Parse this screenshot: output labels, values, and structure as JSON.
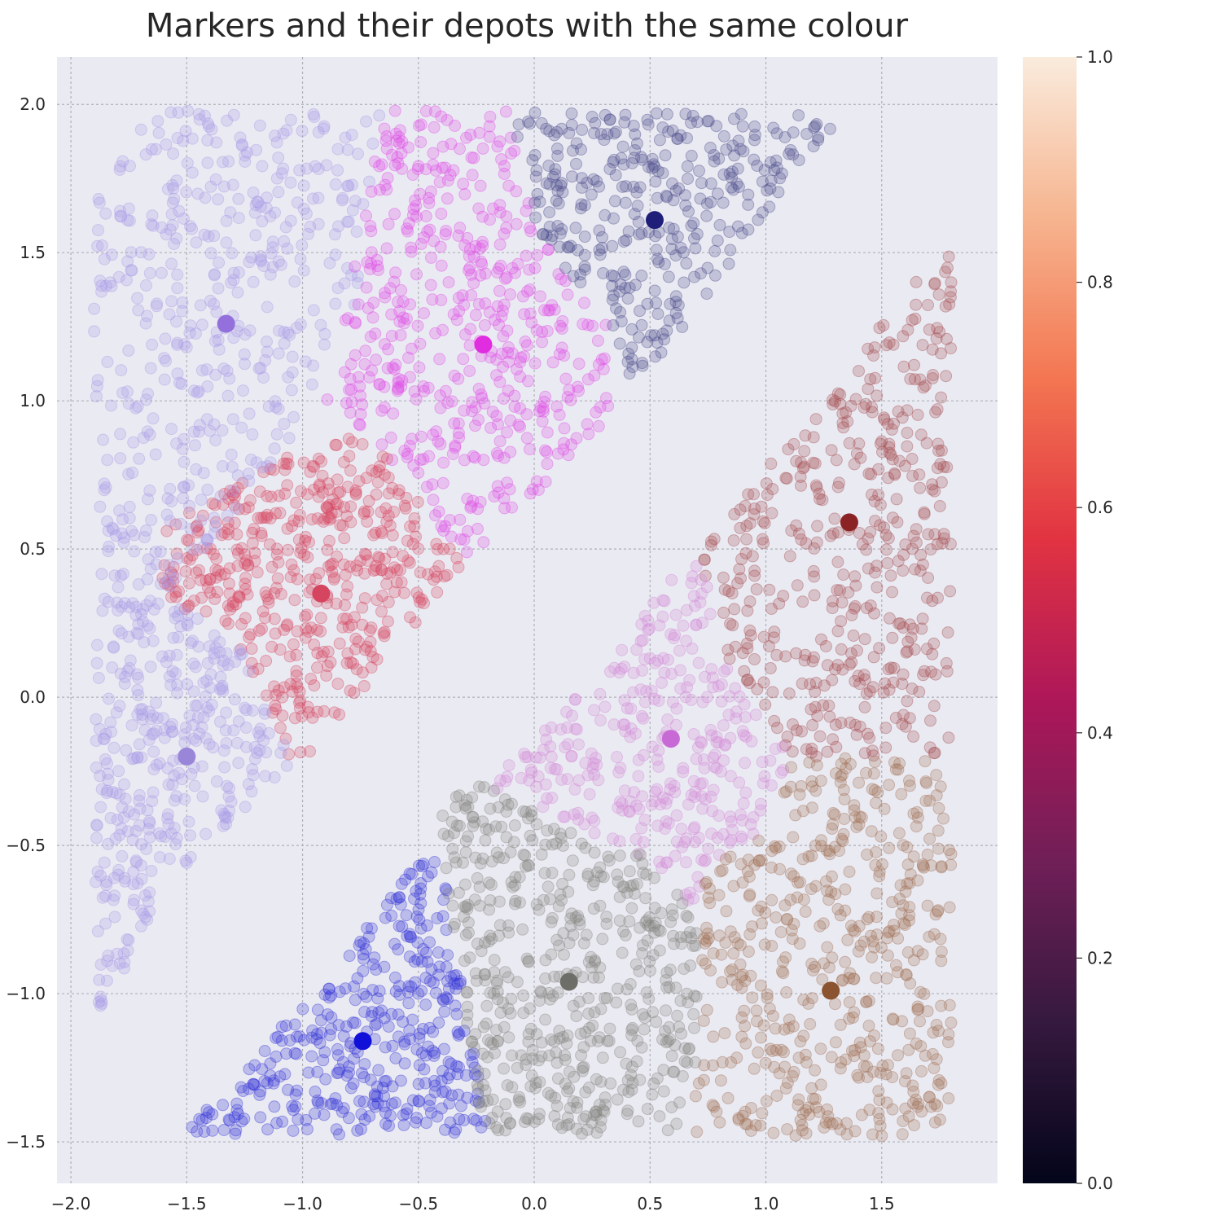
{
  "chart_data": {
    "type": "scatter",
    "title": "Markers and their depots with the same colour",
    "xlabel": "",
    "ylabel": "",
    "xlim": [
      -2.06,
      2.0
    ],
    "ylim": [
      -1.64,
      2.16
    ],
    "x_ticks": [
      -2.0,
      -1.5,
      -1.0,
      -0.5,
      0.0,
      0.5,
      1.0,
      1.5
    ],
    "y_ticks": [
      -1.5,
      -1.0,
      -0.5,
      0.0,
      0.5,
      1.0,
      1.5,
      2.0
    ],
    "x_tick_labels": [
      "−2.0",
      "−1.5",
      "−1.0",
      "−0.5",
      "0.0",
      "0.5",
      "1.0",
      "1.5"
    ],
    "y_tick_labels": [
      "−1.5",
      "−1.0",
      "−0.5",
      "0.0",
      "0.5",
      "1.0",
      "1.5",
      "2.0"
    ],
    "grid": true,
    "background": "#eaeaf2",
    "marker_opacity": 0.25,
    "depots": [
      {
        "x": -1.33,
        "y": 1.26,
        "color": "#9370db"
      },
      {
        "x": -0.22,
        "y": 1.19,
        "color": "#e02de0"
      },
      {
        "x": 0.52,
        "y": 1.61,
        "color": "#1f1f7a"
      },
      {
        "x": -0.92,
        "y": 0.35,
        "color": "#d6455f"
      },
      {
        "x": -1.5,
        "y": -0.2,
        "color": "#9a86d8"
      },
      {
        "x": 1.36,
        "y": 0.59,
        "color": "#8b2325"
      },
      {
        "x": 0.59,
        "y": -0.14,
        "color": "#c86ad6"
      },
      {
        "x": -0.74,
        "y": -1.16,
        "color": "#1010d8"
      },
      {
        "x": 0.15,
        "y": -0.96,
        "color": "#6e6e68"
      },
      {
        "x": 1.28,
        "y": -0.99,
        "color": "#8b5330"
      }
    ],
    "regions": [
      {
        "depot": 0,
        "color": "#a79ce6",
        "polygon": [
          [
            -1.9,
            1.98
          ],
          [
            -0.65,
            1.98
          ],
          [
            -0.78,
            1.3
          ],
          [
            -1.1,
            0.8
          ],
          [
            -1.88,
            0.62
          ],
          [
            -1.9,
            0.9
          ]
        ],
        "count": 380
      },
      {
        "depot": 1,
        "color": "#e04ae6",
        "polygon": [
          [
            -0.65,
            1.98
          ],
          [
            -0.12,
            1.98
          ],
          [
            0.02,
            1.55
          ],
          [
            0.3,
            1.3
          ],
          [
            0.38,
            0.98
          ],
          [
            -0.3,
            0.45
          ],
          [
            -0.72,
            0.9
          ],
          [
            -0.9,
            1.0
          ],
          [
            -0.8,
            1.35
          ]
        ],
        "count": 480
      },
      {
        "depot": 2,
        "color": "#4c4c8c",
        "polygon": [
          [
            -0.12,
            1.98
          ],
          [
            1.35,
            1.98
          ],
          [
            1.05,
            1.68
          ],
          [
            0.42,
            1.02
          ],
          [
            0.3,
            1.3
          ],
          [
            0.02,
            1.55
          ]
        ],
        "count": 330
      },
      {
        "depot": 3,
        "color": "#d6455f",
        "polygon": [
          [
            -1.65,
            0.55
          ],
          [
            -1.1,
            0.8
          ],
          [
            -0.72,
            0.9
          ],
          [
            -0.3,
            0.45
          ],
          [
            -0.98,
            -0.2
          ],
          [
            -1.05,
            -0.22
          ],
          [
            -1.25,
            0.15
          ],
          [
            -1.6,
            0.35
          ]
        ],
        "count": 460
      },
      {
        "depot": 4,
        "color": "#a79ce6",
        "polygon": [
          [
            -1.88,
            0.62
          ],
          [
            -1.1,
            0.8
          ],
          [
            -1.6,
            0.35
          ],
          [
            -1.25,
            0.15
          ],
          [
            -1.05,
            -0.22
          ],
          [
            -1.35,
            -0.45
          ],
          [
            -1.55,
            -0.6
          ],
          [
            -1.7,
            -0.8
          ],
          [
            -1.88,
            -1.1
          ],
          [
            -1.9,
            -0.5
          ]
        ],
        "count": 420
      },
      {
        "depot": 5,
        "color": "#a34c4e",
        "polygon": [
          [
            1.8,
            1.55
          ],
          [
            1.8,
            -0.2
          ],
          [
            1.1,
            -0.2
          ],
          [
            0.85,
            0.1
          ],
          [
            0.7,
            0.5
          ],
          [
            1.15,
            0.92
          ]
        ],
        "count": 430
      },
      {
        "depot": 6,
        "color": "#d48ad8",
        "polygon": [
          [
            0.7,
            0.5
          ],
          [
            0.85,
            0.1
          ],
          [
            1.1,
            -0.2
          ],
          [
            0.98,
            -0.45
          ],
          [
            0.72,
            -0.6
          ],
          [
            0.7,
            -0.75
          ],
          [
            0.52,
            -0.55
          ],
          [
            0.2,
            -0.45
          ],
          [
            -0.2,
            -0.3
          ],
          [
            0.12,
            -0.05
          ]
        ],
        "count": 320
      },
      {
        "depot": 7,
        "color": "#3333d8",
        "polygon": [
          [
            -0.45,
            -0.5
          ],
          [
            -0.38,
            -0.62
          ],
          [
            -0.32,
            -0.95
          ],
          [
            -0.2,
            -1.45
          ],
          [
            -0.25,
            -1.48
          ],
          [
            -1.52,
            -1.48
          ],
          [
            -0.9,
            -0.95
          ]
        ],
        "count": 380
      },
      {
        "depot": 8,
        "color": "#85857f",
        "polygon": [
          [
            -0.35,
            -0.3
          ],
          [
            -0.2,
            -0.3
          ],
          [
            0.2,
            -0.45
          ],
          [
            0.52,
            -0.55
          ],
          [
            0.7,
            -0.75
          ],
          [
            0.72,
            -1.05
          ],
          [
            0.68,
            -1.48
          ],
          [
            -0.22,
            -1.48
          ],
          [
            -0.32,
            -0.95
          ],
          [
            -0.38,
            -0.62
          ],
          [
            -0.45,
            -0.5
          ]
        ],
        "count": 520
      },
      {
        "depot": 9,
        "color": "#a06f52",
        "polygon": [
          [
            0.72,
            -0.6
          ],
          [
            0.98,
            -0.45
          ],
          [
            1.1,
            -0.2
          ],
          [
            1.8,
            -0.2
          ],
          [
            1.8,
            -1.48
          ],
          [
            0.68,
            -1.48
          ],
          [
            0.72,
            -1.05
          ]
        ],
        "count": 500
      }
    ],
    "colorbar": {
      "min": 0.0,
      "max": 1.0,
      "ticks": [
        0.0,
        0.2,
        0.4,
        0.6,
        0.8,
        1.0
      ],
      "tick_labels": [
        "0.0",
        "0.2",
        "0.4",
        "0.6",
        "0.8",
        "1.0"
      ],
      "colormap": "rocket",
      "stops": [
        "#03051a",
        "#35193e",
        "#701f57",
        "#ad1759",
        "#e13342",
        "#f37651",
        "#f6b48f",
        "#faebdd"
      ]
    }
  }
}
